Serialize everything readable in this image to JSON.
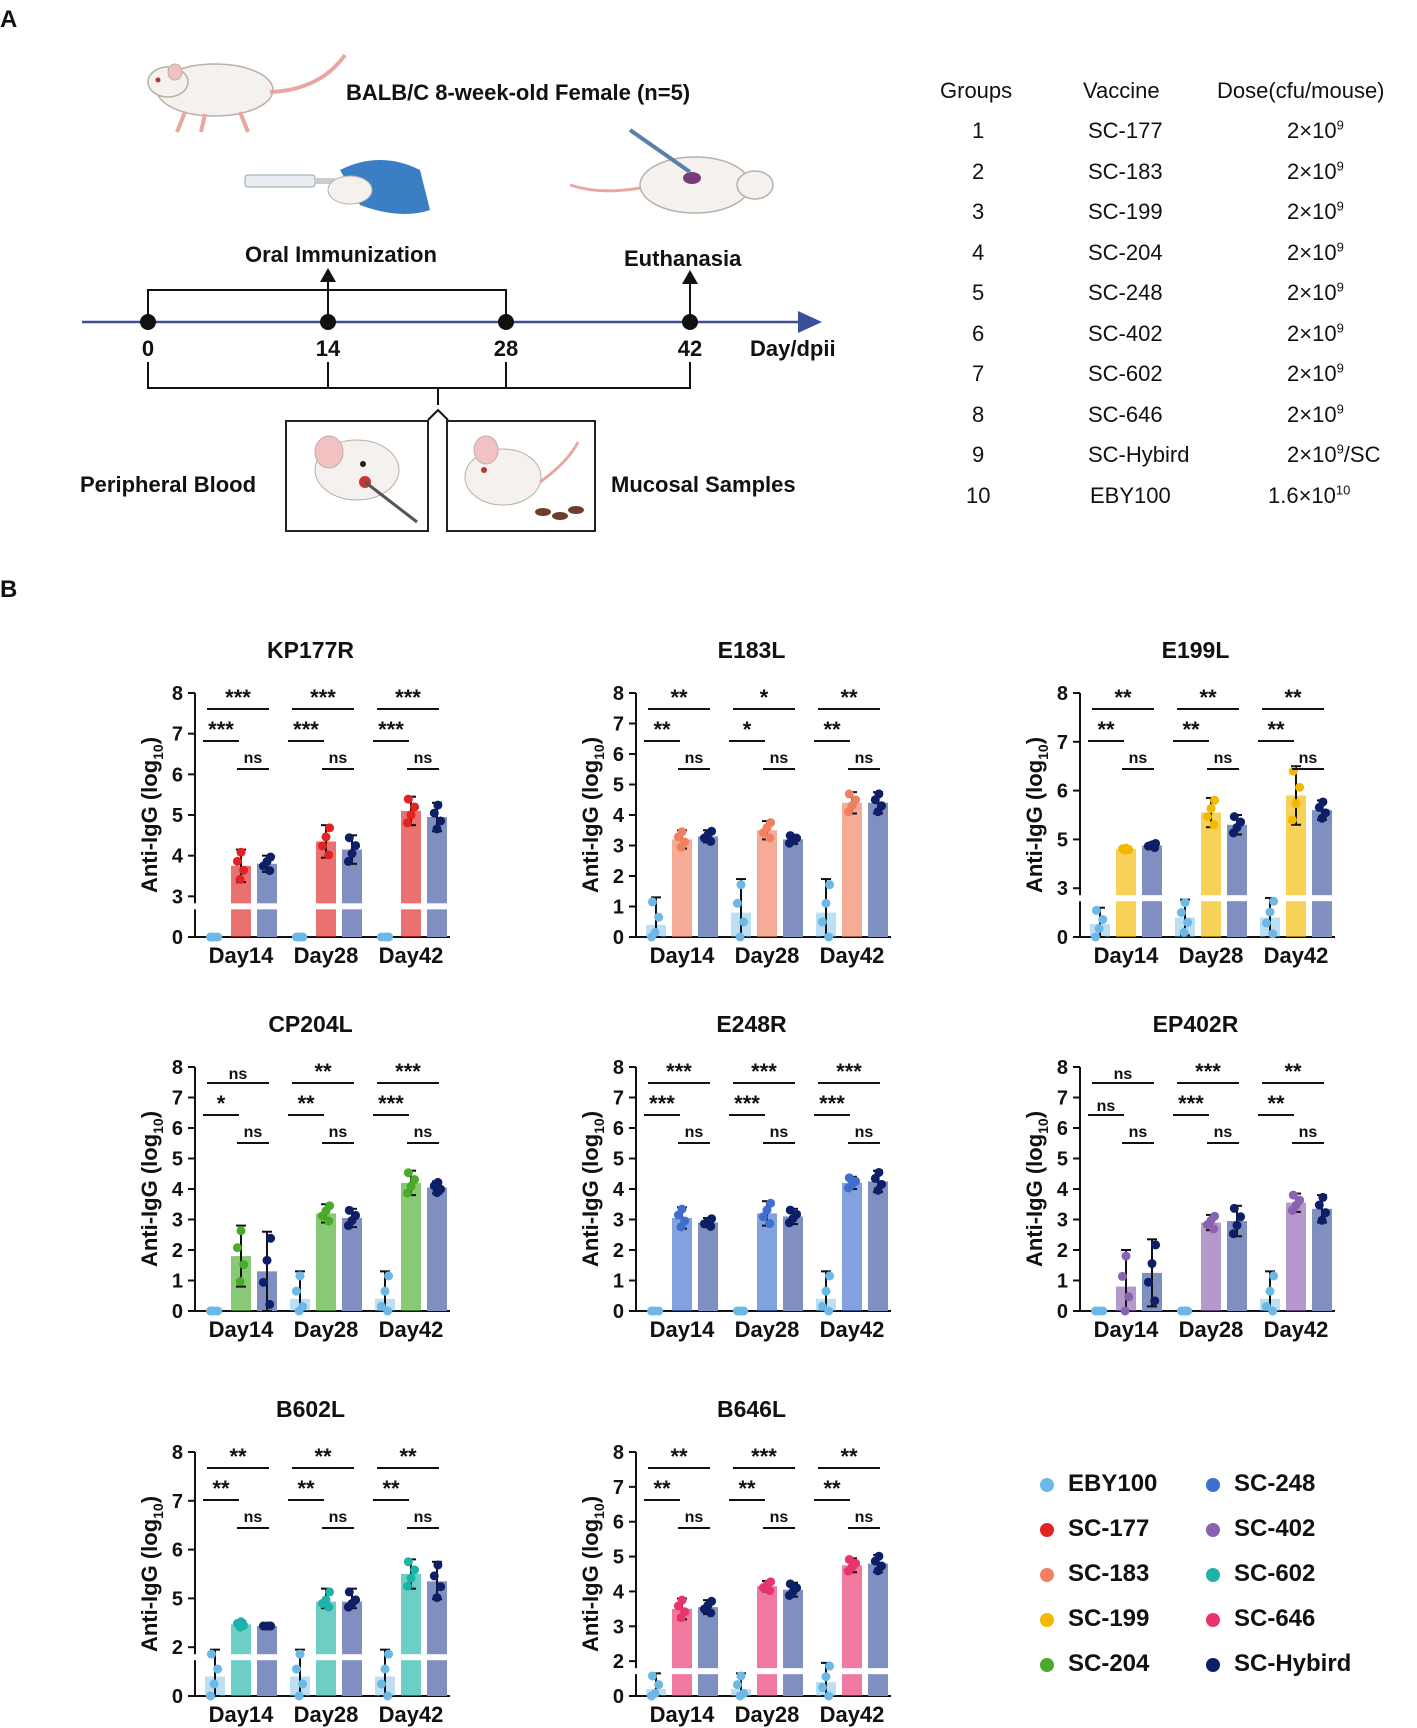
{
  "panel_a": {
    "letter": "A",
    "mouse_info": "BALB/C 8-week-old Female (n=5)",
    "oral_label": "Oral Immunization",
    "euth_label": "Euthanasia",
    "days": [
      "0",
      "14",
      "28",
      "42"
    ],
    "day_unit": "Day/dpii",
    "blood_label": "Peripheral Blood",
    "mucosal_label": "Mucosal Samples"
  },
  "groups_table": {
    "headers": [
      "Groups",
      "Vaccine",
      "Dose(cfu/mouse)"
    ],
    "rows": [
      {
        "group": "1",
        "vaccine": "SC-177",
        "dose_base": "2×10",
        "dose_exp": "9",
        "dose_suffix": ""
      },
      {
        "group": "2",
        "vaccine": "SC-183",
        "dose_base": "2×10",
        "dose_exp": "9",
        "dose_suffix": ""
      },
      {
        "group": "3",
        "vaccine": "SC-199",
        "dose_base": "2×10",
        "dose_exp": "9",
        "dose_suffix": ""
      },
      {
        "group": "4",
        "vaccine": "SC-204",
        "dose_base": "2×10",
        "dose_exp": "9",
        "dose_suffix": ""
      },
      {
        "group": "5",
        "vaccine": "SC-248",
        "dose_base": "2×10",
        "dose_exp": "9",
        "dose_suffix": ""
      },
      {
        "group": "6",
        "vaccine": "SC-402",
        "dose_base": "2×10",
        "dose_exp": "9",
        "dose_suffix": ""
      },
      {
        "group": "7",
        "vaccine": "SC-602",
        "dose_base": "2×10",
        "dose_exp": "9",
        "dose_suffix": ""
      },
      {
        "group": "8",
        "vaccine": "SC-646",
        "dose_base": "2×10",
        "dose_exp": "9",
        "dose_suffix": ""
      },
      {
        "group": "9",
        "vaccine": "SC-Hybird",
        "dose_base": "2×10",
        "dose_exp": "9",
        "dose_suffix": "/SC"
      },
      {
        "group": "10",
        "vaccine": "EBY100",
        "dose_base": "1.6×10",
        "dose_exp": "10",
        "dose_suffix": ""
      }
    ]
  },
  "panel_b": {
    "letter": "B",
    "ylabel_main": "Anti-IgG (log",
    "ylabel_sub": "10",
    "ylabel_end": ")",
    "categories": [
      "Day14",
      "Day28",
      "Day42"
    ],
    "series_names": [
      "EBY100",
      "Vaccine",
      "SC-Hybird"
    ]
  },
  "colors": {
    "EBY100": "#6cb8e6",
    "SC-177": "#e02424",
    "SC-183": "#f08060",
    "SC-199": "#f5b800",
    "SC-204": "#4aaa2a",
    "SC-248": "#3f6fcc",
    "SC-402": "#8a63b0",
    "SC-602": "#1fb3a8",
    "SC-646": "#e8336b",
    "SC-Hybird": "#0d1f66",
    "hybird_bar": "#7f8fc0"
  },
  "legend": [
    {
      "label": "EBY100",
      "color": "#6cb8e6"
    },
    {
      "label": "SC-248",
      "color": "#3f6fcc"
    },
    {
      "label": "SC-177",
      "color": "#e02424"
    },
    {
      "label": "SC-402",
      "color": "#8a63b0"
    },
    {
      "label": "SC-183",
      "color": "#f08060"
    },
    {
      "label": "SC-602",
      "color": "#1fb3a8"
    },
    {
      "label": "SC-199",
      "color": "#f5b800"
    },
    {
      "label": "SC-646",
      "color": "#e8336b"
    },
    {
      "label": "SC-204",
      "color": "#4aaa2a"
    },
    {
      "label": "SC-Hybird",
      "color": "#0d1f66"
    }
  ],
  "chart_data": [
    {
      "type": "bar",
      "title": "KP177R",
      "vaccine": "SC-177",
      "categories": [
        "Day14",
        "Day28",
        "Day42"
      ],
      "yticks": [
        "0",
        "3",
        "4",
        "5",
        "6",
        "7",
        "8"
      ],
      "ylim": [
        0,
        8
      ],
      "axis_break": true,
      "series": [
        {
          "name": "EBY100",
          "values": [
            0,
            0,
            0
          ],
          "errors": [
            0,
            0,
            0
          ]
        },
        {
          "name": "SC-177",
          "values": [
            3.75,
            4.35,
            5.1
          ],
          "errors": [
            0.4,
            0.4,
            0.35
          ]
        },
        {
          "name": "SC-Hybird",
          "values": [
            3.8,
            4.15,
            4.95
          ],
          "errors": [
            0.2,
            0.35,
            0.35
          ]
        }
      ],
      "significance": [
        {
          "day": "Day14",
          "wide": "***",
          "left": "***",
          "right": "ns"
        },
        {
          "day": "Day28",
          "wide": "***",
          "left": "***",
          "right": "ns"
        },
        {
          "day": "Day42",
          "wide": "***",
          "left": "***",
          "right": "ns"
        }
      ]
    },
    {
      "type": "bar",
      "title": "E183L",
      "vaccine": "SC-183",
      "categories": [
        "Day14",
        "Day28",
        "Day42"
      ],
      "yticks": [
        "0",
        "1",
        "2",
        "3",
        "4",
        "5",
        "6",
        "7",
        "8"
      ],
      "ylim": [
        0,
        8
      ],
      "axis_break": false,
      "series": [
        {
          "name": "EBY100",
          "values": [
            0.4,
            0.8,
            0.8
          ],
          "errors": [
            0.9,
            1.1,
            1.1
          ]
        },
        {
          "name": "SC-183",
          "values": [
            3.2,
            3.5,
            4.4
          ],
          "errors": [
            0.3,
            0.3,
            0.35
          ]
        },
        {
          "name": "SC-Hybird",
          "values": [
            3.3,
            3.2,
            4.4
          ],
          "errors": [
            0.2,
            0.15,
            0.35
          ]
        }
      ],
      "significance": [
        {
          "day": "Day14",
          "wide": "**",
          "left": "**",
          "right": "ns"
        },
        {
          "day": "Day28",
          "wide": "*",
          "left": "*",
          "right": "ns"
        },
        {
          "day": "Day42",
          "wide": "**",
          "left": "**",
          "right": "ns"
        }
      ]
    },
    {
      "type": "bar",
      "title": "E199L",
      "vaccine": "SC-199",
      "categories": [
        "Day14",
        "Day28",
        "Day42"
      ],
      "yticks": [
        "0",
        "3",
        "5",
        "6",
        "7",
        "8"
      ],
      "ylim": [
        0,
        8
      ],
      "axis_break": true,
      "series": [
        {
          "name": "EBY100",
          "values": [
            0.8,
            1.2,
            1.2
          ],
          "errors": [
            1.0,
            1.1,
            1.2
          ]
        },
        {
          "name": "SC-199",
          "values": [
            4.6,
            5.55,
            5.9
          ],
          "errors": [
            0.05,
            0.3,
            0.6
          ]
        },
        {
          "name": "SC-Hybird",
          "values": [
            4.75,
            5.3,
            5.6
          ],
          "errors": [
            0.1,
            0.2,
            0.2
          ]
        }
      ],
      "significance": [
        {
          "day": "Day14",
          "wide": "**",
          "left": "**",
          "right": "ns"
        },
        {
          "day": "Day28",
          "wide": "**",
          "left": "**",
          "right": "ns"
        },
        {
          "day": "Day42",
          "wide": "**",
          "left": "**",
          "right": "ns"
        }
      ]
    },
    {
      "type": "bar",
      "title": "CP204L",
      "vaccine": "SC-204",
      "categories": [
        "Day14",
        "Day28",
        "Day42"
      ],
      "yticks": [
        "0",
        "1",
        "2",
        "3",
        "4",
        "5",
        "6",
        "7",
        "8"
      ],
      "ylim": [
        0,
        8
      ],
      "axis_break": false,
      "series": [
        {
          "name": "EBY100",
          "values": [
            0,
            0.4,
            0.4
          ],
          "errors": [
            0,
            0.9,
            0.9
          ]
        },
        {
          "name": "SC-204",
          "values": [
            1.8,
            3.2,
            4.2
          ],
          "errors": [
            1.0,
            0.3,
            0.4
          ]
        },
        {
          "name": "SC-Hybird",
          "values": [
            1.3,
            3.05,
            4.05
          ],
          "errors": [
            1.3,
            0.3,
            0.2
          ]
        }
      ],
      "significance": [
        {
          "day": "Day14",
          "wide": "ns",
          "left": "*",
          "right": "ns"
        },
        {
          "day": "Day28",
          "wide": "**",
          "left": "**",
          "right": "ns"
        },
        {
          "day": "Day42",
          "wide": "***",
          "left": "***",
          "right": "ns"
        }
      ]
    },
    {
      "type": "bar",
      "title": "E248R",
      "vaccine": "SC-248",
      "categories": [
        "Day14",
        "Day28",
        "Day42"
      ],
      "yticks": [
        "0",
        "1",
        "2",
        "3",
        "4",
        "5",
        "6",
        "7",
        "8"
      ],
      "ylim": [
        0,
        8
      ],
      "axis_break": false,
      "series": [
        {
          "name": "EBY100",
          "values": [
            0,
            0,
            0.4
          ],
          "errors": [
            0,
            0,
            0.9
          ]
        },
        {
          "name": "SC-248",
          "values": [
            3.05,
            3.2,
            4.2
          ],
          "errors": [
            0.35,
            0.4,
            0.2
          ]
        },
        {
          "name": "SC-Hybird",
          "values": [
            2.9,
            3.1,
            4.25
          ],
          "errors": [
            0.15,
            0.25,
            0.35
          ]
        }
      ],
      "significance": [
        {
          "day": "Day14",
          "wide": "***",
          "left": "***",
          "right": "ns"
        },
        {
          "day": "Day28",
          "wide": "***",
          "left": "***",
          "right": "ns"
        },
        {
          "day": "Day42",
          "wide": "***",
          "left": "***",
          "right": "ns"
        }
      ]
    },
    {
      "type": "bar",
      "title": "EP402R",
      "vaccine": "SC-402",
      "categories": [
        "Day14",
        "Day28",
        "Day42"
      ],
      "yticks": [
        "0",
        "1",
        "2",
        "3",
        "4",
        "5",
        "6",
        "7",
        "8"
      ],
      "ylim": [
        0,
        8
      ],
      "axis_break": false,
      "series": [
        {
          "name": "EBY100",
          "values": [
            0,
            0,
            0.4
          ],
          "errors": [
            0,
            0,
            0.9
          ]
        },
        {
          "name": "SC-402",
          "values": [
            0.8,
            2.9,
            3.55
          ],
          "errors": [
            1.2,
            0.25,
            0.3
          ]
        },
        {
          "name": "SC-Hybird",
          "values": [
            1.25,
            2.95,
            3.35
          ],
          "errors": [
            1.1,
            0.5,
            0.45
          ]
        }
      ],
      "significance": [
        {
          "day": "Day14",
          "wide": "ns",
          "left": "ns",
          "right": "ns"
        },
        {
          "day": "Day28",
          "wide": "***",
          "left": "***",
          "right": "ns"
        },
        {
          "day": "Day42",
          "wide": "**",
          "left": "**",
          "right": "ns"
        }
      ]
    },
    {
      "type": "bar",
      "title": "B602L",
      "vaccine": "SC-602",
      "categories": [
        "Day14",
        "Day28",
        "Day42"
      ],
      "yticks": [
        "0",
        "2",
        "5",
        "6",
        "7",
        "8"
      ],
      "ylim": [
        0,
        8
      ],
      "axis_break": true,
      "series": [
        {
          "name": "EBY100",
          "values": [
            0.8,
            0.8,
            0.8
          ],
          "errors": [
            1.1,
            1.1,
            1.1
          ]
        },
        {
          "name": "SC-602",
          "values": [
            3.4,
            4.8,
            5.5
          ],
          "errors": [
            0.2,
            0.4,
            0.3
          ]
        },
        {
          "name": "SC-Hybird",
          "values": [
            3.3,
            4.8,
            5.35
          ],
          "errors": [
            0.0,
            0.4,
            0.4
          ]
        }
      ],
      "significance": [
        {
          "day": "Day14",
          "wide": "**",
          "left": "**",
          "right": "ns"
        },
        {
          "day": "Day28",
          "wide": "**",
          "left": "**",
          "right": "ns"
        },
        {
          "day": "Day42",
          "wide": "**",
          "left": "**",
          "right": "ns"
        }
      ]
    },
    {
      "type": "bar",
      "title": "B646L",
      "vaccine": "SC-646",
      "categories": [
        "Day14",
        "Day28",
        "Day42"
      ],
      "yticks": [
        "0",
        "2",
        "3",
        "4",
        "5",
        "6",
        "7",
        "8"
      ],
      "ylim": [
        0,
        8
      ],
      "axis_break": true,
      "series": [
        {
          "name": "EBY100",
          "values": [
            0.4,
            0.4,
            0.8
          ],
          "errors": [
            0.9,
            0.9,
            1.1
          ]
        },
        {
          "name": "SC-646",
          "values": [
            3.5,
            4.15,
            4.75
          ],
          "errors": [
            0.3,
            0.15,
            0.2
          ]
        },
        {
          "name": "SC-Hybird",
          "values": [
            3.55,
            4.05,
            4.8
          ],
          "errors": [
            0.2,
            0.2,
            0.25
          ]
        }
      ],
      "significance": [
        {
          "day": "Day14",
          "wide": "**",
          "left": "**",
          "right": "ns"
        },
        {
          "day": "Day28",
          "wide": "***",
          "left": "**",
          "right": "ns"
        },
        {
          "day": "Day42",
          "wide": "**",
          "left": "**",
          "right": "ns"
        }
      ]
    }
  ]
}
